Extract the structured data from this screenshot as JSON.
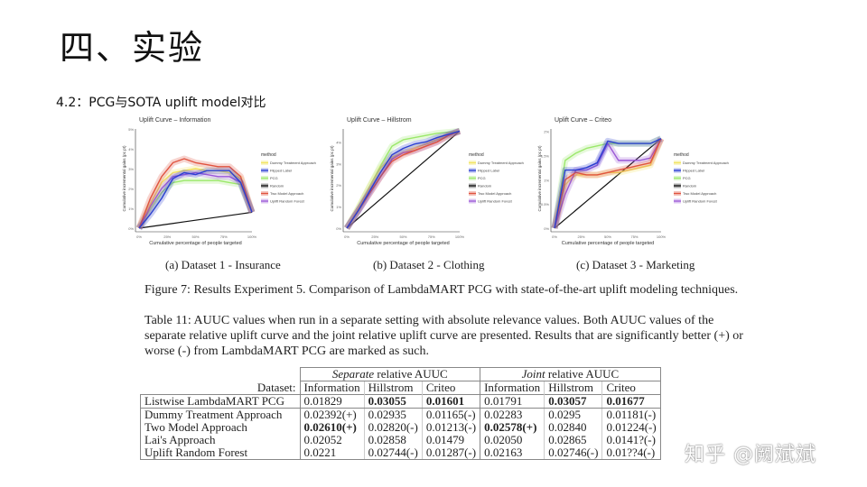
{
  "slide": {
    "title": "四、实验",
    "subtitle": "4.2：PCG与SOTA uplift model对比"
  },
  "figure": {
    "captions": [
      "(a) Dataset 1 - Insurance",
      "(b) Dataset 2 - Clothing",
      "(c) Dataset 3 - Marketing"
    ],
    "caption": "Figure 7: Results Experiment 5. Comparison of LambdaMART PCG with state-of-the-art uplift modeling techniques."
  },
  "table_caption": [
    "Table 11: AUUC values when run in a separate setting with absolute relevance values. Both AUUC values of the",
    "separate relative uplift curve and the joint relative uplift curve are presented. Results that are significantly better (+) or",
    "worse (-) from LambdaMART PCG are marked as such."
  ],
  "table": {
    "group_headers": [
      "Separate",
      "relative AUUC",
      "Joint",
      "relative AUUC"
    ],
    "dataset_label": "Dataset:",
    "columns": [
      "Information",
      "Hillstrom",
      "Criteo",
      "Information",
      "Hillstrom",
      "Criteo"
    ],
    "rows": [
      {
        "name": "Listwise LambdaMART PCG",
        "cells": [
          "0.01829",
          "0.03055",
          "0.01601",
          "0.01791",
          "0.03057",
          "0.01677"
        ],
        "bold": [
          1,
          2,
          4,
          5
        ]
      },
      {
        "name": "Dummy Treatment Approach",
        "cells": [
          "0.02392(+)",
          "0.02935",
          "0.01165(-)",
          "0.02283",
          "0.0295",
          "0.01181(-)"
        ],
        "bold": []
      },
      {
        "name": "Two Model Approach",
        "cells": [
          "0.02610(+)",
          "0.02820(-)",
          "0.01213(-)",
          "0.02578(+)",
          "0.02840",
          "0.01224(-)"
        ],
        "bold": [
          0,
          3
        ]
      },
      {
        "name": "Lai's Approach",
        "cells": [
          "0.02052",
          "0.02858",
          "0.01479",
          "0.02050",
          "0.02865",
          "0.0141?(-)"
        ],
        "bold": []
      },
      {
        "name": "Uplift Random Forest",
        "cells": [
          "0.0221",
          "0.02744(-)",
          "0.01287(-)",
          "0.02163",
          "0.02746(-)",
          "0.01??4(-)"
        ],
        "bold": []
      }
    ]
  },
  "watermark": "知乎 @阙斌斌",
  "chart_data": [
    {
      "type": "line",
      "title": "Uplift Curve – Information",
      "xlabel": "Cumulative percentage of people targeted",
      "ylabel": "Cumulative incremental gains (pc pt)",
      "xlim": [
        0,
        100
      ],
      "ylim": [
        0,
        5
      ],
      "xticks": [
        "0%",
        "25%",
        "50%",
        "75%",
        "100%"
      ],
      "yticks": [
        "0%",
        "1%",
        "2%",
        "3%",
        "4%",
        "5%"
      ],
      "legend_title": "method",
      "legend": "right",
      "x": [
        0,
        10,
        20,
        30,
        40,
        50,
        60,
        70,
        80,
        90,
        100
      ],
      "series": [
        {
          "name": "Dummy Treatment Approach",
          "color": "#f2e35c",
          "values": [
            0,
            1.2,
            2.3,
            2.8,
            2.9,
            3.0,
            2.9,
            2.9,
            2.8,
            2.5,
            0.8
          ]
        },
        {
          "name": "Flipped Label",
          "color": "#2b3fd1",
          "values": [
            0,
            0.7,
            1.5,
            2.5,
            2.8,
            2.7,
            2.9,
            2.9,
            2.9,
            2.3,
            0.8
          ]
        },
        {
          "name": "PCG",
          "color": "#9be86a",
          "values": [
            0,
            1.0,
            1.8,
            2.3,
            2.4,
            2.4,
            2.4,
            2.4,
            2.3,
            2.2,
            0.8
          ]
        },
        {
          "name": "Random",
          "color": "#111111",
          "values": [
            0,
            0.08,
            0.16,
            0.24,
            0.32,
            0.4,
            0.48,
            0.56,
            0.64,
            0.72,
            0.8
          ]
        },
        {
          "name": "Two Model Approach",
          "color": "#e0533f",
          "values": [
            0,
            1.5,
            2.6,
            3.3,
            3.5,
            3.3,
            3.2,
            3.1,
            3.1,
            2.6,
            0.8
          ]
        },
        {
          "name": "Uplift Random Forest",
          "color": "#9b59d6",
          "values": [
            0,
            1.1,
            2.0,
            2.6,
            2.7,
            2.8,
            2.7,
            2.6,
            2.6,
            2.3,
            0.8
          ]
        }
      ]
    },
    {
      "type": "line",
      "title": "Uplift Curve – Hillstrom",
      "xlabel": "Cumulative percentage of people targeted",
      "ylabel": "Cumulative incremental gains (pc pt)",
      "xlim": [
        0,
        100
      ],
      "ylim": [
        0,
        4.6
      ],
      "xticks": [
        "0%",
        "25%",
        "50%",
        "75%",
        "100%"
      ],
      "yticks": [
        "0%",
        "1%",
        "2%",
        "3%",
        "4%"
      ],
      "legend_title": "method",
      "legend": "right",
      "x": [
        0,
        10,
        20,
        30,
        40,
        50,
        60,
        70,
        80,
        90,
        100
      ],
      "series": [
        {
          "name": "Dummy Treatment Approach",
          "color": "#f2e35c",
          "values": [
            0,
            0.9,
            1.9,
            2.8,
            3.3,
            3.5,
            3.7,
            3.9,
            4.1,
            4.3,
            4.5
          ]
        },
        {
          "name": "Flipped Label",
          "color": "#2b3fd1",
          "values": [
            0,
            0.8,
            1.7,
            2.6,
            3.4,
            3.7,
            3.9,
            4.0,
            4.2,
            4.35,
            4.5
          ]
        },
        {
          "name": "PCG",
          "color": "#9be86a",
          "values": [
            0,
            0.9,
            1.9,
            2.9,
            3.8,
            4.1,
            4.2,
            4.3,
            4.4,
            4.45,
            4.5
          ]
        },
        {
          "name": "Random",
          "color": "#111111",
          "values": [
            0,
            0.45,
            0.9,
            1.35,
            1.8,
            2.25,
            2.7,
            3.15,
            3.6,
            4.05,
            4.5
          ]
        },
        {
          "name": "Two Model Approach",
          "color": "#e0533f",
          "values": [
            0,
            0.8,
            1.6,
            2.4,
            3.1,
            3.4,
            3.6,
            3.8,
            4.0,
            4.3,
            4.5
          ]
        },
        {
          "name": "Uplift Random Forest",
          "color": "#9b59d6",
          "values": [
            0,
            0.8,
            1.6,
            2.4,
            3.2,
            3.5,
            3.6,
            3.8,
            4.0,
            4.3,
            4.5
          ]
        }
      ]
    },
    {
      "type": "line",
      "title": "Uplift Curve – Criteo",
      "xlabel": "Cumulative percentage of people targeted",
      "ylabel": "Cumulative incremental gains (pc pt)",
      "xlim": [
        0,
        100
      ],
      "ylim": [
        0,
        2.05
      ],
      "xticks": [
        "0%",
        "25%",
        "50%",
        "75%",
        "100%"
      ],
      "yticks": [
        "0%",
        "0.5%",
        "1%",
        "1.5%",
        "2%"
      ],
      "legend_title": "method",
      "legend": "right",
      "x": [
        0,
        10,
        20,
        30,
        40,
        50,
        60,
        70,
        80,
        90,
        100
      ],
      "series": [
        {
          "name": "Dummy Treatment Approach",
          "color": "#f2e35c",
          "values": [
            0,
            0.9,
            1.1,
            1.1,
            1.1,
            1.15,
            1.15,
            1.2,
            1.25,
            1.3,
            1.85
          ]
        },
        {
          "name": "Flipped Label",
          "color": "#2b3fd1",
          "values": [
            0,
            1.2,
            1.2,
            1.25,
            1.35,
            1.8,
            1.75,
            1.75,
            1.75,
            1.75,
            1.85
          ]
        },
        {
          "name": "PCG",
          "color": "#9be86a",
          "values": [
            0,
            1.4,
            1.55,
            1.65,
            1.7,
            1.75,
            1.75,
            1.75,
            1.75,
            1.75,
            1.85
          ]
        },
        {
          "name": "Random",
          "color": "#111111",
          "values": [
            0,
            0.185,
            0.37,
            0.555,
            0.74,
            0.925,
            1.11,
            1.295,
            1.48,
            1.665,
            1.85
          ]
        },
        {
          "name": "Two Model Approach",
          "color": "#e0533f",
          "values": [
            0,
            1.0,
            1.15,
            1.1,
            1.1,
            1.15,
            1.2,
            1.25,
            1.3,
            1.35,
            1.85
          ]
        },
        {
          "name": "Uplift Random Forest",
          "color": "#9b59d6",
          "values": [
            0,
            0.7,
            1.2,
            1.2,
            1.3,
            1.75,
            1.4,
            1.4,
            1.4,
            1.45,
            1.85
          ]
        }
      ]
    }
  ]
}
